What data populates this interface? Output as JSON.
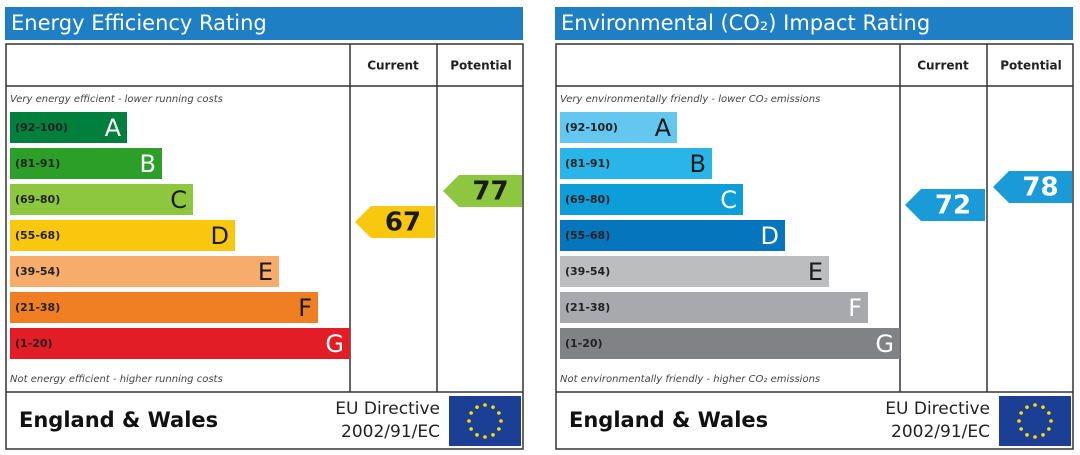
{
  "panels": [
    {
      "title": "Energy Efficiency Rating",
      "columns": [
        "Current",
        "Potential"
      ],
      "top_note": "Very energy efficient - lower running costs",
      "bottom_note": "Not energy efficient - higher running costs",
      "bands": [
        {
          "range": "(92-100)",
          "letter": "A",
          "color": "#007f3d",
          "letter_color": "#ffffff"
        },
        {
          "range": "(81-91)",
          "letter": "B",
          "color": "#2c9f29",
          "letter_color": "#ffffff"
        },
        {
          "range": "(69-80)",
          "letter": "C",
          "color": "#8dc63f",
          "letter_color": "#1a1a1a"
        },
        {
          "range": "(55-68)",
          "letter": "D",
          "color": "#f9c80e",
          "letter_color": "#1a1a1a"
        },
        {
          "range": "(39-54)",
          "letter": "E",
          "color": "#f6ad6b",
          "letter_color": "#1a1a1a"
        },
        {
          "range": "(21-38)",
          "letter": "F",
          "color": "#f07e22",
          "letter_color": "#1a1a1a"
        },
        {
          "range": "(1-20)",
          "letter": "G",
          "color": "#e31d25",
          "letter_color": "#ffffff"
        }
      ],
      "current": {
        "value": 67,
        "color": "#f9c80e",
        "text_color": "#1a1a1a"
      },
      "potential": {
        "value": 77,
        "color": "#8dc63f",
        "text_color": "#1a1a1a"
      },
      "region": "England & Wales",
      "directive": [
        "EU Directive",
        "2002/91/EC"
      ]
    },
    {
      "title": "Environmental (CO₂) Impact Rating",
      "columns": [
        "Current",
        "Potential"
      ],
      "top_note": "Very environmentally friendly - lower CO₂ emissions",
      "bottom_note": "Not environmentally friendly - higher CO₂ emissions",
      "bands": [
        {
          "range": "(92-100)",
          "letter": "A",
          "color": "#63c7f0",
          "letter_color": "#1a1a1a"
        },
        {
          "range": "(81-91)",
          "letter": "B",
          "color": "#29b5e8",
          "letter_color": "#1a1a1a"
        },
        {
          "range": "(69-80)",
          "letter": "C",
          "color": "#0d9ed9",
          "letter_color": "#ffffff"
        },
        {
          "range": "(55-68)",
          "letter": "D",
          "color": "#0575bd",
          "letter_color": "#ffffff"
        },
        {
          "range": "(39-54)",
          "letter": "E",
          "color": "#bbbdbf",
          "letter_color": "#1a1a1a"
        },
        {
          "range": "(21-38)",
          "letter": "F",
          "color": "#a7a9ac",
          "letter_color": "#ffffff"
        },
        {
          "range": "(1-20)",
          "letter": "G",
          "color": "#808285",
          "letter_color": "#ffffff"
        }
      ],
      "current": {
        "value": 72,
        "color": "#1a9ad6",
        "text_color": "#ffffff"
      },
      "potential": {
        "value": 78,
        "color": "#1a9ad6",
        "text_color": "#ffffff"
      },
      "region": "England & Wales",
      "directive": [
        "EU Directive",
        "2002/91/EC"
      ]
    }
  ]
}
